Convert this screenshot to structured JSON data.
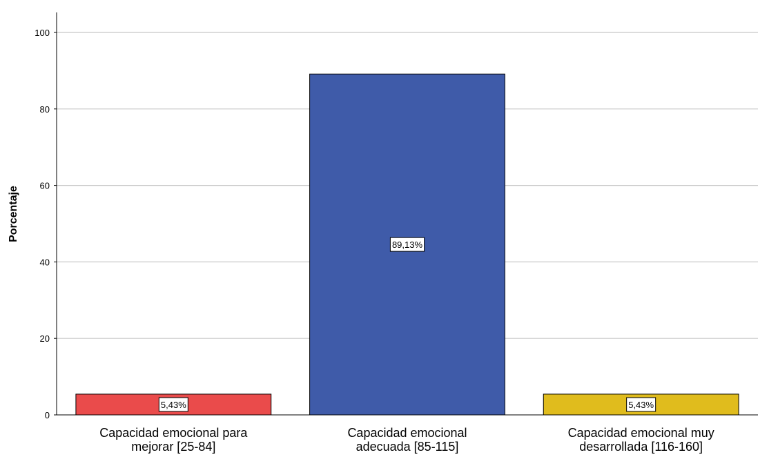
{
  "chart_data": {
    "type": "bar",
    "categories": [
      [
        "Capacidad emocional para",
        "mejorar [25-84]"
      ],
      [
        "Capacidad emocional",
        "adecuada [85-115]"
      ],
      [
        "Capacidad emocional muy",
        "desarrollada [116-160]"
      ]
    ],
    "values": [
      5.43,
      89.13,
      5.43
    ],
    "data_labels": [
      "5,43%",
      "89,13%",
      "5,43%"
    ],
    "colors": [
      "#ea4b4b",
      "#3f5ba9",
      "#e0bc1d"
    ],
    "ylabel": "Porcentaje",
    "xlabel": "",
    "ylim": [
      0,
      100
    ],
    "yticks": [
      0,
      20,
      40,
      60,
      80,
      100
    ],
    "grid": true
  }
}
